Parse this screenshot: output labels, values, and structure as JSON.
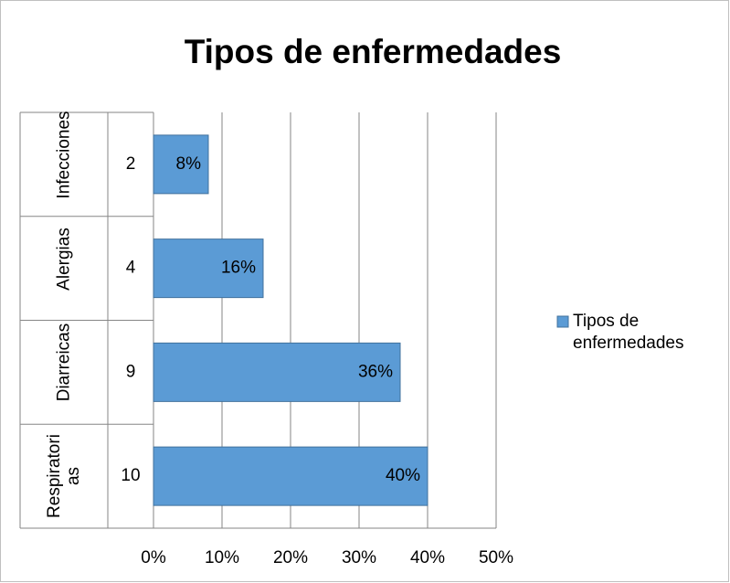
{
  "chart_data": {
    "type": "hbar",
    "title": "Tipos de enfermedades",
    "groups": [
      "Infecciones",
      "Alergias",
      "Diarreicas",
      "Respiratorias"
    ],
    "categories": [
      "2",
      "4",
      "9",
      "10"
    ],
    "series": [
      {
        "name": "Tipos de enfermedades",
        "color": "#5b9bd5",
        "values": [
          8,
          16,
          36,
          40
        ],
        "value_labels": [
          "8%",
          "16%",
          "36%",
          "40%"
        ]
      }
    ],
    "xlim": [
      0,
      50
    ],
    "xticks": [
      {
        "value": 0,
        "label": "0%"
      },
      {
        "value": 10,
        "label": "10%"
      },
      {
        "value": 20,
        "label": "20%"
      },
      {
        "value": 30,
        "label": "30%"
      },
      {
        "value": 40,
        "label": "40%"
      },
      {
        "value": 50,
        "label": "50%"
      }
    ],
    "grid": true,
    "legend": "right"
  }
}
